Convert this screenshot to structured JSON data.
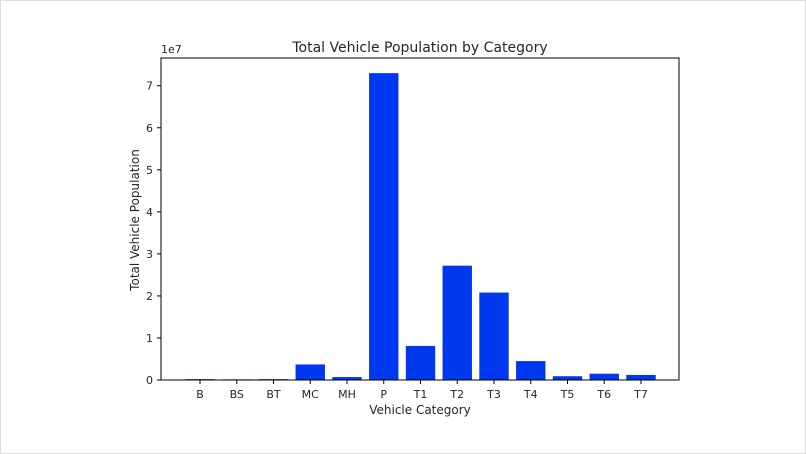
{
  "chart_data": {
    "type": "bar",
    "title": "Total Vehicle Population by Category",
    "xlabel": "Vehicle Category",
    "ylabel": "Total Vehicle Population",
    "y_multiplier_label": "1e7",
    "categories": [
      "B",
      "BS",
      "BT",
      "MC",
      "MH",
      "P",
      "T1",
      "T2",
      "T3",
      "T4",
      "T5",
      "T6",
      "T7"
    ],
    "values": [
      200000,
      150000,
      200000,
      3700000,
      700000,
      73000000,
      8100000,
      27200000,
      20800000,
      4500000,
      900000,
      1500000,
      1200000
    ],
    "ylim": [
      0,
      76600000
    ],
    "yticks": [
      0,
      10000000,
      20000000,
      30000000,
      40000000,
      50000000,
      60000000,
      70000000
    ],
    "ytick_labels": [
      "0",
      "1",
      "2",
      "3",
      "4",
      "5",
      "6",
      "7"
    ],
    "bar_color": "#0038f0",
    "grid": false,
    "legend": "none"
  }
}
